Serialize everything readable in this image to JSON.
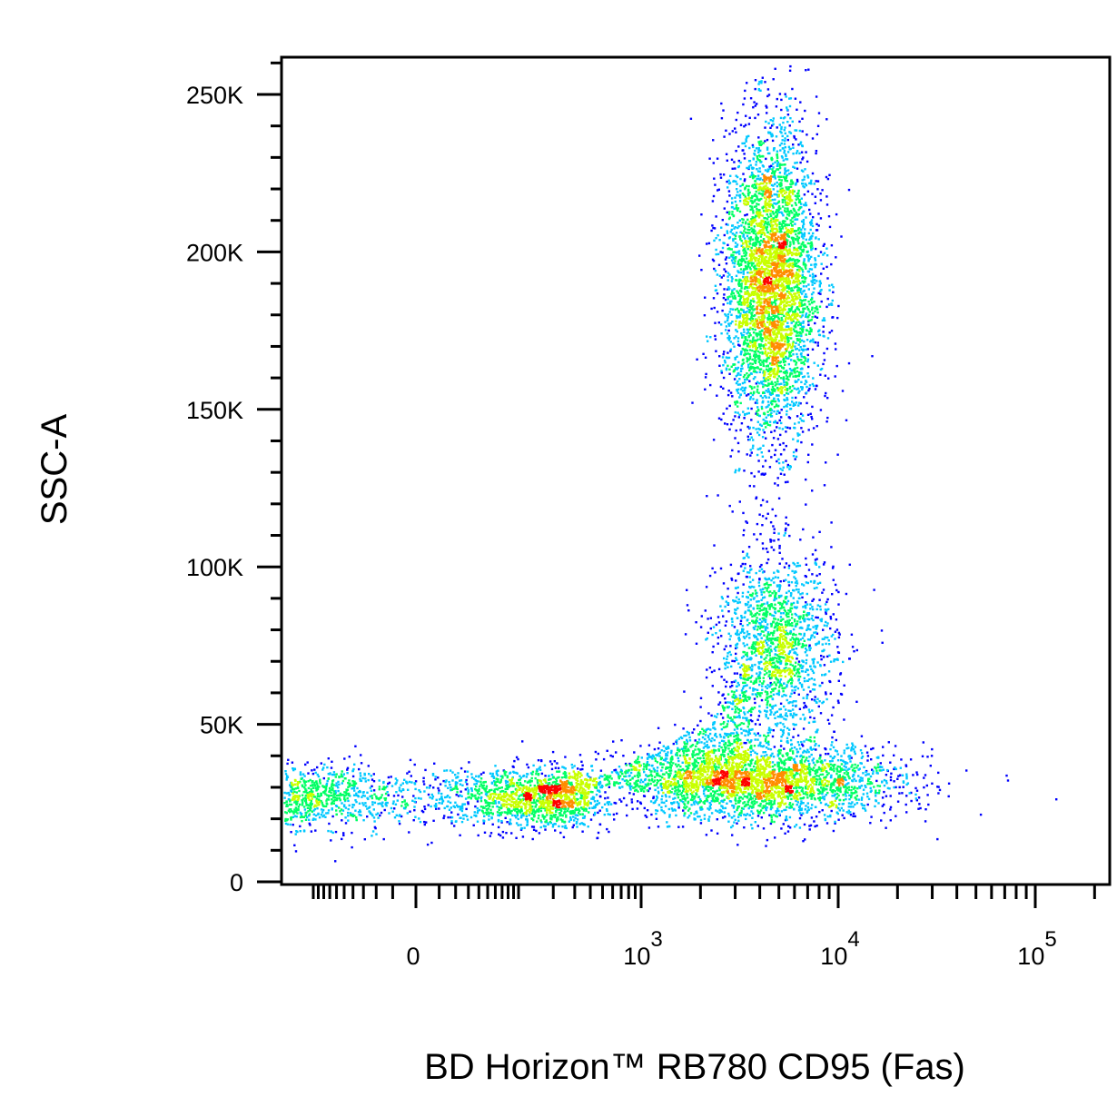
{
  "chart_data": {
    "type": "scatter",
    "subtype": "flow-cytometry-density-dot-plot",
    "xlabel": "BD Horizon™ RB780 CD95 (Fas)",
    "ylabel": "SSC-A",
    "x_scale": "biexponential",
    "y_scale": "linear",
    "ylim": [
      -5000,
      262144
    ],
    "xlim": [
      -300,
      200000
    ],
    "y_ticks": [
      {
        "value": 0,
        "label": "0"
      },
      {
        "value": 50000,
        "label": "50K"
      },
      {
        "value": 100000,
        "label": "100K"
      },
      {
        "value": 150000,
        "label": "150K"
      },
      {
        "value": 200000,
        "label": "200K"
      },
      {
        "value": 250000,
        "label": "250K"
      }
    ],
    "x_ticks": [
      {
        "value": 0,
        "label": "0",
        "sup": ""
      },
      {
        "value": 1000,
        "label": "10",
        "sup": "3"
      },
      {
        "value": 10000,
        "label": "10",
        "sup": "4"
      },
      {
        "value": 100000,
        "label": "10",
        "sup": "5"
      }
    ],
    "color_scale": [
      "#0000ff",
      "#00c8ff",
      "#00ff64",
      "#c8ff00",
      "#ff8c00",
      "#ff0000"
    ],
    "grid": false,
    "legend": "none",
    "populations": [
      {
        "center_x": 40,
        "center_y": 27000,
        "sd_x_decades": 0.9,
        "sd_y": 5000,
        "weight": 0.22
      },
      {
        "center_x": 4000,
        "center_y": 32000,
        "sd_x_decades": 0.35,
        "sd_y": 6000,
        "weight": 0.25
      },
      {
        "center_x": 4500,
        "center_y": 190000,
        "sd_x_decades": 0.12,
        "sd_y": 25000,
        "weight": 0.38
      },
      {
        "center_x": 4800,
        "center_y": 75000,
        "sd_x_decades": 0.15,
        "sd_y": 15000,
        "weight": 0.15
      }
    ]
  }
}
